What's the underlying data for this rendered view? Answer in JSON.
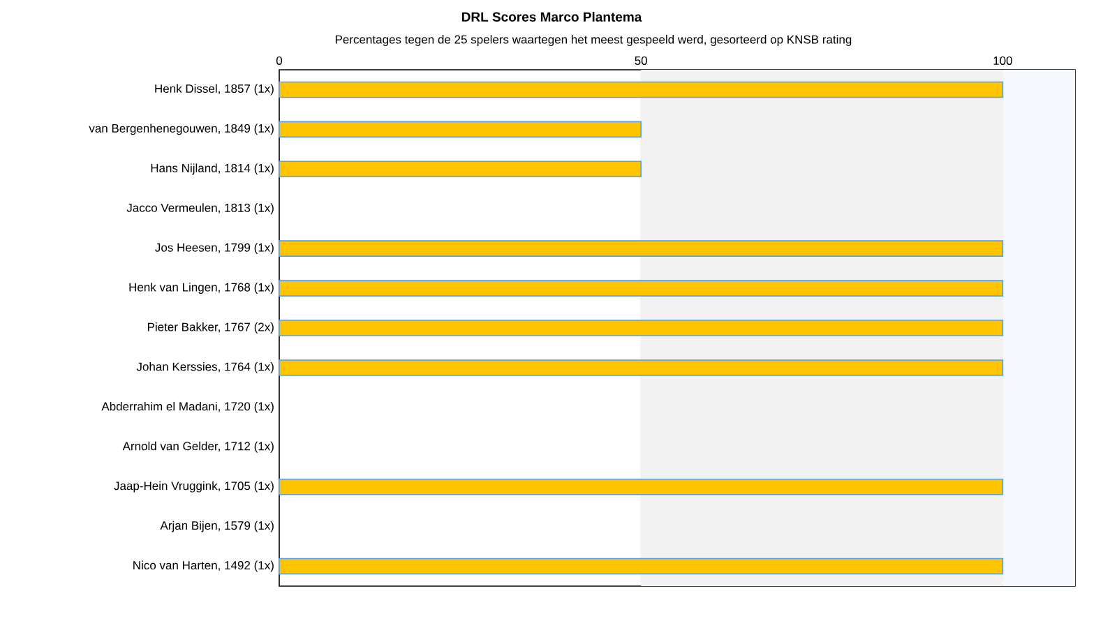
{
  "chart_data": {
    "type": "bar",
    "orientation": "horizontal",
    "title": "DRL Scores Marco Plantema",
    "subtitle": "Percentages tegen de 25 spelers waartegen het meest gespeeld werd, gesorteerd op KNSB rating",
    "categories": [
      "Henk Dissel, 1857 (1x)",
      "van Bergenhenegouwen, 1849 (1x)",
      "Hans Nijland, 1814 (1x)",
      "Jacco Vermeulen, 1813 (1x)",
      "Jos Heesen, 1799 (1x)",
      "Henk van Lingen, 1768 (1x)",
      "Pieter Bakker, 1767 (2x)",
      "Johan Kerssies, 1764 (1x)",
      "Abderrahim el Madani, 1720 (1x)",
      "Arnold van Gelder, 1712 (1x)",
      "Jaap-Hein Vruggink, 1705 (1x)",
      "Arjan Bijen, 1579 (1x)",
      "Nico van Harten, 1492 (1x)"
    ],
    "values": [
      100,
      50,
      50,
      0,
      100,
      100,
      100,
      100,
      0,
      0,
      100,
      0,
      100
    ],
    "color": "#ffc400",
    "xlim": [
      0,
      110
    ],
    "xticks": [
      0,
      50,
      100
    ],
    "grid": "x",
    "bands": [
      {
        "axis": "x",
        "from": 50,
        "to": 100,
        "color": "#f2f2f2"
      },
      {
        "axis": "x",
        "from": 100,
        "to": 110,
        "color": "#f5f9fd"
      }
    ]
  }
}
